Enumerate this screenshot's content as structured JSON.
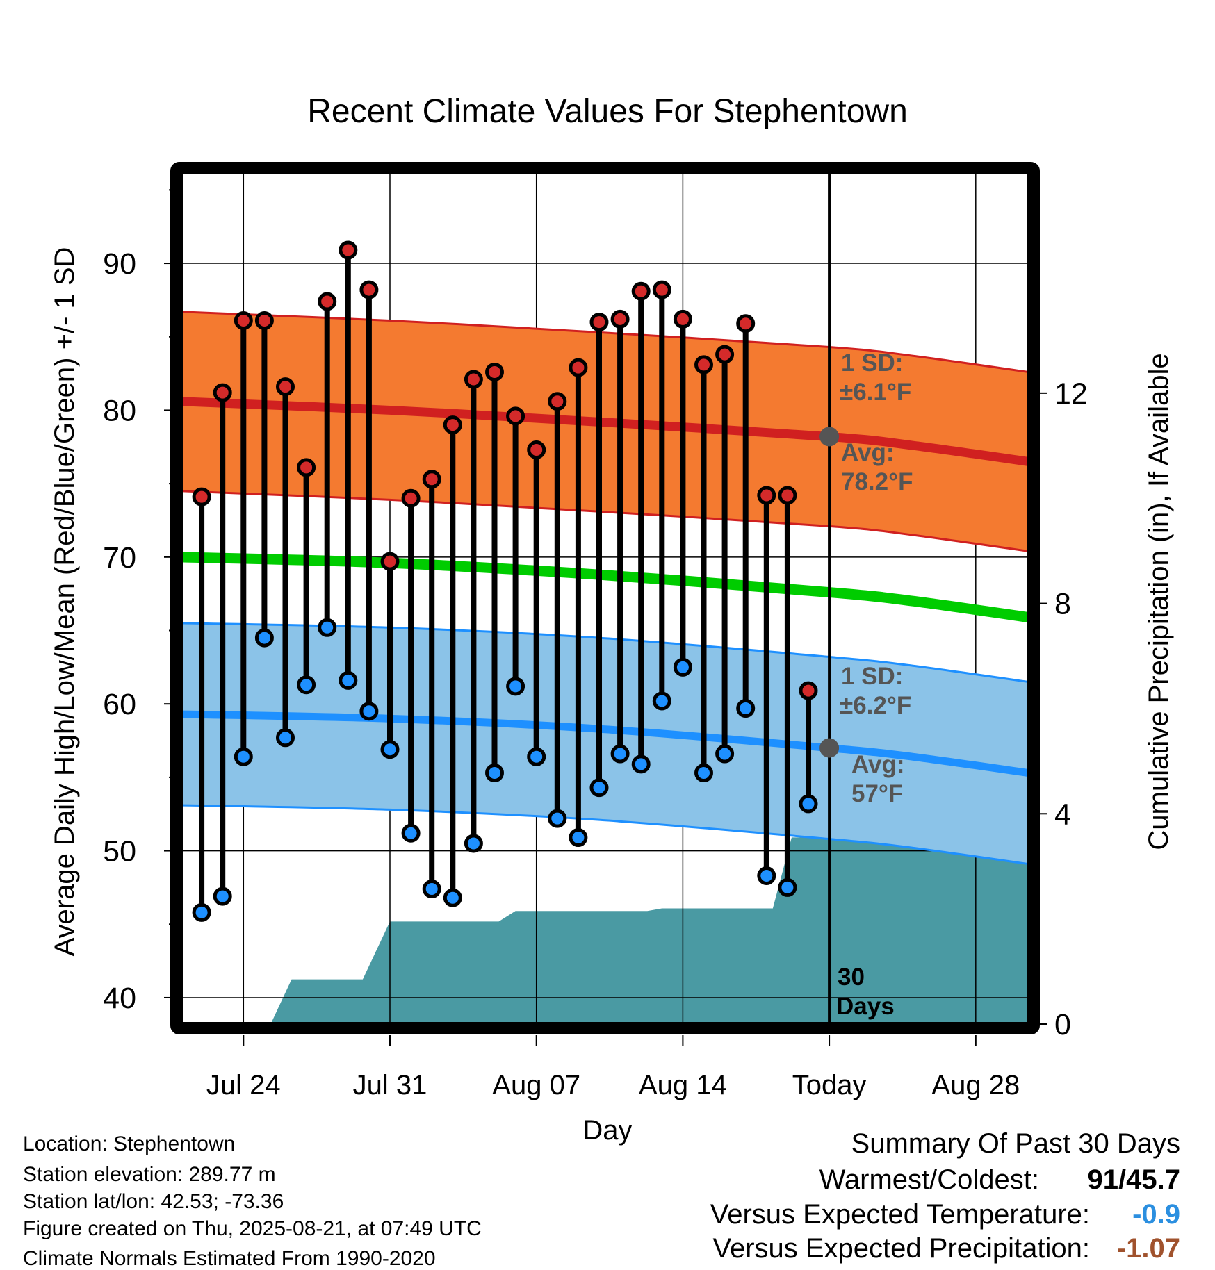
{
  "chart_data": {
    "type": "line",
    "title": "Recent Climate Values For Stephentown",
    "xlabel": "Day",
    "ylabel_left": "Average Daily High/Low/Mean (Red/Blue/Green) +/- 1 SD",
    "ylabel_right": "Cumulative Precipitation (in), If Available",
    "x_tick_labels": [
      {
        "day": 3,
        "label": "Jul 24"
      },
      {
        "day": 10,
        "label": "Jul 31"
      },
      {
        "day": 17,
        "label": "Aug 07"
      },
      {
        "day": 24,
        "label": "Aug 14"
      },
      {
        "day": 31,
        "label": "Today"
      },
      {
        "day": 38,
        "label": "Aug 28"
      }
    ],
    "x_range_days": [
      0,
      41
    ],
    "today_day": 31,
    "ylim_temp": [
      38.2,
      96.2
    ],
    "y_ticks_temp": [
      40,
      50,
      60,
      70,
      80,
      90
    ],
    "precip_ylim": [
      0,
      16.2
    ],
    "precip_ticks": [
      0,
      4,
      8,
      12
    ],
    "grid": true,
    "observed": {
      "days": [
        1,
        2,
        3,
        4,
        5,
        6,
        7,
        8,
        9,
        10,
        11,
        12,
        13,
        14,
        15,
        16,
        17,
        18,
        19,
        20,
        21,
        22,
        23,
        24,
        25,
        26,
        27,
        28,
        29,
        30
      ],
      "high": [
        74.1,
        81.2,
        86.1,
        86.1,
        81.6,
        76.1,
        87.4,
        90.9,
        88.2,
        69.7,
        74.0,
        75.3,
        79.0,
        82.1,
        82.6,
        79.6,
        77.3,
        80.6,
        82.9,
        86.0,
        86.2,
        88.1,
        88.2,
        86.2,
        83.1,
        83.8,
        85.9,
        74.2,
        74.2,
        60.9
      ],
      "low": [
        45.8,
        46.9,
        56.4,
        64.5,
        57.7,
        61.3,
        65.2,
        61.6,
        59.5,
        56.9,
        51.2,
        47.4,
        46.8,
        50.5,
        55.3,
        61.2,
        56.4,
        52.2,
        50.9,
        54.3,
        56.6,
        55.9,
        60.2,
        62.5,
        55.3,
        56.6,
        59.7,
        48.3,
        47.5,
        53.2
      ]
    },
    "normals": {
      "days": [
        0,
        10,
        20,
        31,
        35,
        41
      ],
      "high_mean": [
        80.6,
        80.0,
        79.2,
        78.2,
        77.6,
        76.4
      ],
      "high_sd": 6.1,
      "mean": [
        70.0,
        69.6,
        68.8,
        67.6,
        67.0,
        65.8
      ],
      "low_mean": [
        59.3,
        59.0,
        58.3,
        57.0,
        56.4,
        55.2
      ],
      "low_sd": 6.2
    },
    "precip_cumulative": {
      "days": [
        0,
        4.3,
        5.3,
        8.7,
        10.0,
        15.2,
        16.0,
        22.3,
        23.0,
        28.3,
        29.2,
        41
      ],
      "values": [
        0,
        0,
        0.85,
        0.85,
        1.95,
        1.95,
        2.15,
        2.15,
        2.2,
        2.2,
        3.55,
        3.55
      ]
    },
    "annotations": {
      "high_sd_label": "1 SD:",
      "high_sd_value": "±6.1°F",
      "high_avg_label": "Avg:",
      "high_avg_value": "78.2°F",
      "low_sd_label": "1 SD:",
      "low_sd_value": "±6.2°F",
      "low_avg_label": "Avg:",
      "low_avg_value": "57°F",
      "period_value": "30",
      "period_unit": "Days"
    },
    "colors": {
      "high_band": "#f47a30",
      "high_line": "#d02020",
      "mean_line": "#00cc00",
      "low_band": "#8bc3e8",
      "low_line": "#1e90ff",
      "precip": "#4a9aa3",
      "high_dot": "#d42a2a",
      "low_dot": "#1e90ff",
      "avg_dot": "#555555"
    }
  },
  "footer": {
    "location": "Location: Stephentown",
    "elevation": "Station elevation: 289.77 m",
    "latlon": "Station lat/lon: 42.53; -73.36",
    "created": "Figure created on Thu, 2025-08-21, at 07:49 UTC",
    "normals": "Climate Normals Estimated From 1990-2020"
  },
  "summary": {
    "heading": "Summary Of Past 30 Days",
    "warm_cold_label": "Warmest/Coldest:",
    "warm_value": "91",
    "slash": "/",
    "cold_value": "45.7",
    "temp_label": "Versus Expected Temperature:",
    "temp_value": "-0.9",
    "temp_color": "#2b8fe0",
    "precip_label": "Versus Expected Precipitation:",
    "precip_value": "-1.07",
    "precip_color": "#a0522d"
  }
}
